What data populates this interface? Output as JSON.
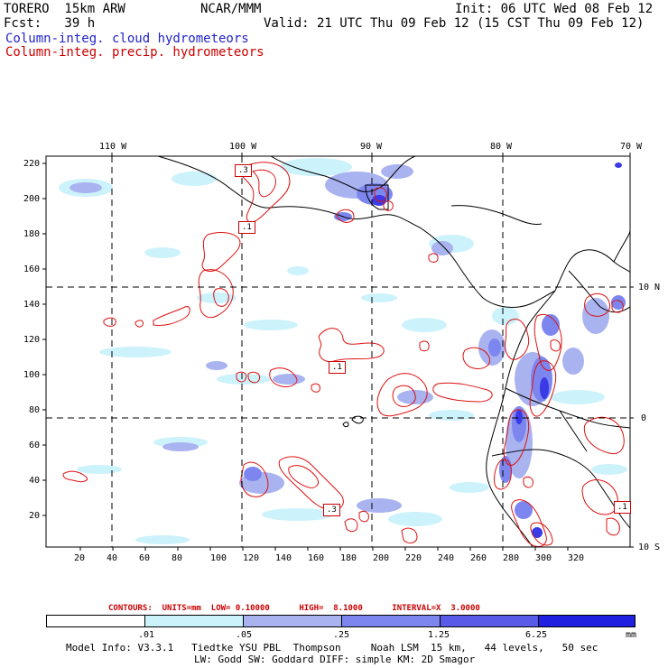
{
  "header": {
    "model": "TORERO  15km ARW",
    "org": "NCAR/MMM",
    "init": "Init: 06 UTC Wed 08 Feb 12",
    "fcst": "Fcst:   39 h",
    "valid": "Valid: 21 UTC Thu 09 Feb 12 (15 CST Thu 09 Feb 12)",
    "field_cloud": "Column-integ. cloud hydrometeors",
    "field_precip": "Column-integ. precip. hydrometeors"
  },
  "colors": {
    "cloud_text": "#2222cc",
    "precip_text": "#cc0000",
    "contour": "#dd1111",
    "map_lines": "#000000",
    "shade_1": "#ccf2fb",
    "shade_2": "#a9b3f0",
    "shade_3": "#7d86ee",
    "shade_4": "#5a5ae8",
    "shade_5": "#2020e0"
  },
  "map": {
    "lon_labels": [
      "110 W",
      "100 W",
      "90 W",
      "80 W",
      "70 W"
    ],
    "lat_labels": [
      "10 N",
      "0",
      "10 S"
    ],
    "y_ticks": [
      "220",
      "200",
      "180",
      "160",
      "140",
      "120",
      "100",
      "80",
      "60",
      "40",
      "20"
    ],
    "x_ticks": [
      "20",
      "40",
      "60",
      "80",
      "100",
      "120",
      "140",
      "160",
      "180",
      "200",
      "220",
      "240",
      "260",
      "280",
      "300",
      "320"
    ],
    "contour_labels": [
      ".3",
      ".1",
      ".1",
      ".3",
      ".1"
    ]
  },
  "contour_info": {
    "units": "CONTOURS:  UNITS=mm  LOW= 0.10000      HIGH=  8.1000      INTERVAL=X  3.0000"
  },
  "colorbar": {
    "labels": [
      ".01",
      ".05",
      ".25",
      "1.25",
      "6.25",
      "mm"
    ]
  },
  "model_info": {
    "line1": "Model Info: V3.3.1   Tiedtke YSU PBL  Thompson     Noah LSM  15 km,   44 levels,   50 sec",
    "line2": "LW: Godd SW: Goddard DIFF: simple KM: 2D Smagor"
  }
}
